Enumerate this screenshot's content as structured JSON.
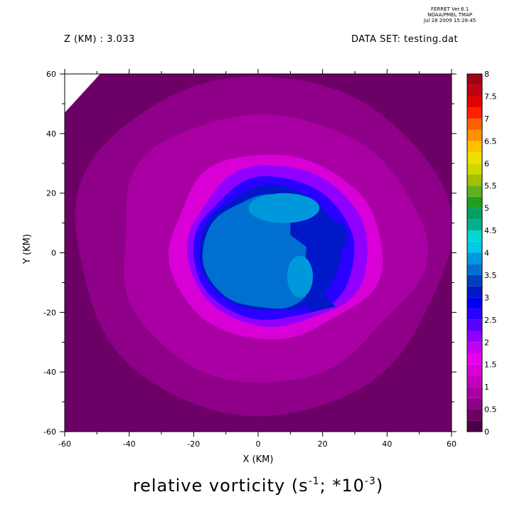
{
  "stamp": {
    "line1": "FERRET  Ver.6.1",
    "line2": "NOAA/PMEL TMAP",
    "line3": "Jul 28 2009 15:28:45"
  },
  "header": {
    "z_label": "Z (KM) : 3.033",
    "dataset_label": "DATA SET: testing.dat"
  },
  "chart_data": {
    "type": "heatmap",
    "title": "relative vorticity (s",
    "title_exp1": "-1",
    "title_mid": "; *10",
    "title_exp2": "-3",
    "title_end": ")",
    "xlabel": "X (KM)",
    "ylabel": "Y (KM)",
    "xlim": [
      -60,
      60
    ],
    "ylim": [
      -60,
      60
    ],
    "xticks": [
      -60,
      -40,
      -20,
      0,
      20,
      40,
      60
    ],
    "yticks": [
      -60,
      -40,
      -20,
      0,
      20,
      40,
      60
    ],
    "colorbar": {
      "levels": [
        0,
        0.25,
        0.5,
        0.75,
        1,
        1.25,
        1.5,
        1.75,
        2,
        2.25,
        2.5,
        2.75,
        3,
        3.25,
        3.5,
        3.75,
        4,
        4.25,
        4.5,
        4.75,
        5,
        5.25,
        5.5,
        5.75,
        6,
        6.25,
        6.5,
        6.75,
        7,
        7.25,
        7.5,
        7.75,
        8
      ],
      "labels": [
        "0",
        "0.5",
        "1",
        "1.5",
        "2",
        "2.5",
        "3",
        "3.5",
        "4",
        "4.5",
        "5",
        "5.5",
        "6",
        "6.5",
        "7",
        "7.5",
        "8"
      ],
      "colors": [
        "#4b0048",
        "#6c0066",
        "#8e0088",
        "#a800a2",
        "#c000bc",
        "#d800d6",
        "#e800ea",
        "#c000f0",
        "#9000ff",
        "#5a00ff",
        "#2a00ff",
        "#0000f0",
        "#0018c8",
        "#0040c0",
        "#0070d0",
        "#0098dd",
        "#00c8e8",
        "#00d8d0",
        "#00b090",
        "#00a060",
        "#20a020",
        "#60b020",
        "#a0c000",
        "#d0d800",
        "#f0e000",
        "#ffc000",
        "#ff9000",
        "#ff6000",
        "#ff2000",
        "#e00000",
        "#c00010",
        "#a00018",
        "#800018"
      ]
    },
    "field_values": {
      "background": 0.4,
      "outer_disk": 0.6,
      "ring": 0.9,
      "pink_ring": 1.4,
      "purple_ring": 2.0,
      "blue_ring": 2.6,
      "inner_blue": 3.1,
      "core": 3.6,
      "core_highlight": 3.9
    }
  }
}
